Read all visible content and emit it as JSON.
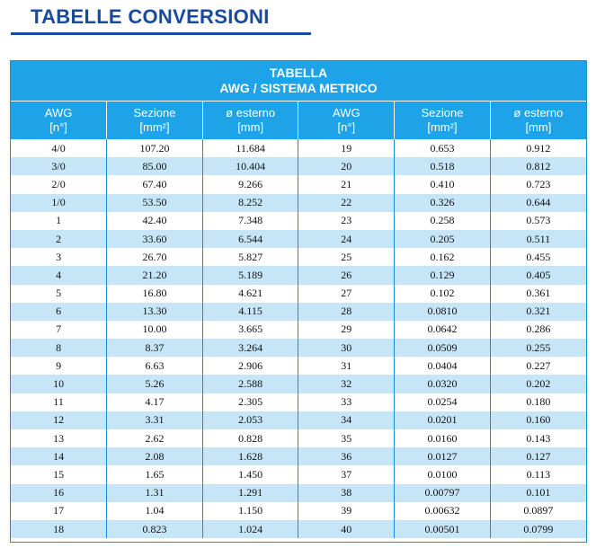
{
  "page": {
    "title": "TABELLE CONVERSIONI"
  },
  "table": {
    "caption_line1": "TABELLA",
    "caption_line2": "AWG / SISTEMA METRICO",
    "headers": [
      {
        "line1": "AWG",
        "line2": "[n°]"
      },
      {
        "line1": "Sezione",
        "line2": "[mm²]"
      },
      {
        "line1": "ø esterno",
        "line2": "[mm]"
      },
      {
        "line1": "AWG",
        "line2": "[n°]"
      },
      {
        "line1": "Sezione",
        "line2": "[mm²]"
      },
      {
        "line1": "ø esterno",
        "line2": "[mm]"
      }
    ],
    "rows": [
      [
        "4/0",
        "107.20",
        "11.684",
        "19",
        "0.653",
        "0.912"
      ],
      [
        "3/0",
        "85.00",
        "10.404",
        "20",
        "0.518",
        "0.812"
      ],
      [
        "2/0",
        "67.40",
        "9.266",
        "21",
        "0.410",
        "0.723"
      ],
      [
        "1/0",
        "53.50",
        "8.252",
        "22",
        "0.326",
        "0.644"
      ],
      [
        "1",
        "42.40",
        "7.348",
        "23",
        "0.258",
        "0.573"
      ],
      [
        "2",
        "33.60",
        "6.544",
        "24",
        "0.205",
        "0.511"
      ],
      [
        "3",
        "26.70",
        "5.827",
        "25",
        "0.162",
        "0.455"
      ],
      [
        "4",
        "21.20",
        "5.189",
        "26",
        "0.129",
        "0.405"
      ],
      [
        "5",
        "16.80",
        "4.621",
        "27",
        "0.102",
        "0.361"
      ],
      [
        "6",
        "13.30",
        "4.115",
        "28",
        "0.0810",
        "0.321"
      ],
      [
        "7",
        "10.00",
        "3.665",
        "29",
        "0.0642",
        "0.286"
      ],
      [
        "8",
        "8.37",
        "3.264",
        "30",
        "0.0509",
        "0.255"
      ],
      [
        "9",
        "6.63",
        "2.906",
        "31",
        "0.0404",
        "0.227"
      ],
      [
        "10",
        "5.26",
        "2.588",
        "32",
        "0.0320",
        "0.202"
      ],
      [
        "11",
        "4.17",
        "2.305",
        "33",
        "0.0254",
        "0.180"
      ],
      [
        "12",
        "3.31",
        "2.053",
        "34",
        "0.0201",
        "0.160"
      ],
      [
        "13",
        "2.62",
        "0.828",
        "35",
        "0.0160",
        "0.143"
      ],
      [
        "14",
        "2.08",
        "1.628",
        "36",
        "0.0127",
        "0.127"
      ],
      [
        "15",
        "1.65",
        "1.450",
        "37",
        "0.0100",
        "0.113"
      ],
      [
        "16",
        "1.31",
        "1.291",
        "38",
        "0.00797",
        "0.101"
      ],
      [
        "17",
        "1.04",
        "1.150",
        "39",
        "0.00632",
        "0.0897"
      ],
      [
        "18",
        "0.823",
        "1.024",
        "40",
        "0.00501",
        "0.0799"
      ]
    ]
  },
  "colors": {
    "title": "#1a4a9c",
    "header_bg": "#1fa3e8",
    "stripe": "#c6e6f8",
    "border": "#1b8fd6"
  }
}
